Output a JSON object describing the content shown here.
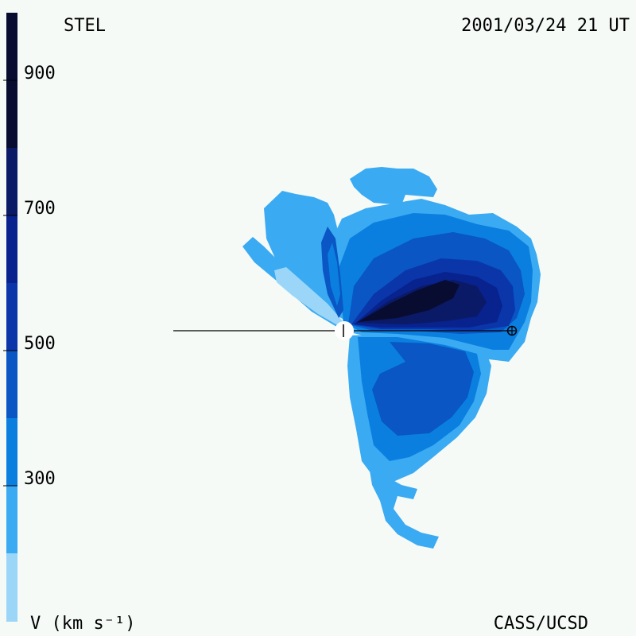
{
  "header": {
    "instrument": "STEL",
    "datetime": "2001/03/24 21 UT"
  },
  "footer": {
    "unit_label": "V (km s⁻¹)",
    "credit": "CASS/UCSD"
  },
  "colorbar": {
    "ticks": [
      "900",
      "700",
      "500",
      "300"
    ],
    "colors": [
      "#080c30",
      "#0a1a66",
      "#08228e",
      "#0a36aa",
      "#0956c4",
      "#0a7fe0",
      "#3aaaf2",
      "#9bd6f8"
    ]
  },
  "colors": {
    "background": "#f5faf7",
    "v1": "#9bd6f8",
    "v2": "#3aaaf2",
    "v3": "#0a7fe0",
    "v4": "#0956c4",
    "v5": "#0a36aa",
    "v6": "#08228e",
    "v7": "#0a1a66",
    "v8": "#080c30"
  },
  "markers": {
    "sun_symbol": "sun-center",
    "earth_symbol": "earth-marker"
  }
}
